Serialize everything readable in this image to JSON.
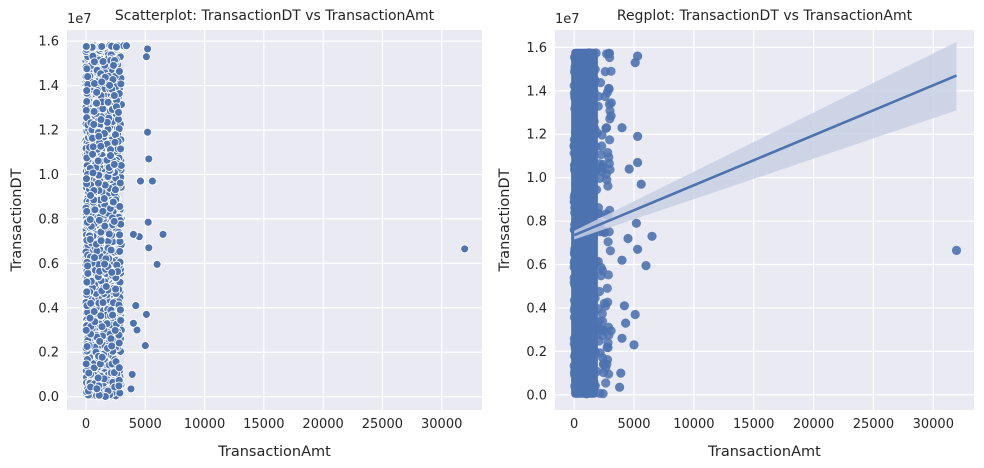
{
  "colors": {
    "axes_bg": "#eaeaf2",
    "grid": "#ffffff",
    "marker": "#4c72b0",
    "marker_edge": "#ffffff",
    "ci_band": "#c8d0e4",
    "text": "#262626"
  },
  "chart_data": [
    {
      "type": "scatter",
      "title": "Scatterplot: TransactionDT vs TransactionAmt",
      "xlabel": "TransactionAmt",
      "ylabel": "TransactionDT",
      "y_offset_label": "1e7",
      "xticks": [
        0,
        5000,
        10000,
        15000,
        20000,
        25000,
        30000
      ],
      "xtick_labels": [
        "0",
        "5000",
        "10000",
        "15000",
        "20000",
        "25000",
        "30000"
      ],
      "yticks": [
        0.0,
        0.2,
        0.4,
        0.6,
        0.8,
        1.0,
        1.2,
        1.4,
        1.6
      ],
      "ytick_labels": [
        "0.0",
        "0.2",
        "0.4",
        "0.6",
        "0.8",
        "1.0",
        "1.2",
        "1.4",
        "1.6"
      ],
      "xlim": [
        -1600,
        33400
      ],
      "ylim": [
        -0.06,
        1.65
      ],
      "grid": true,
      "marker_edge": "white",
      "dense_region": {
        "x_range": [
          0,
          3000
        ],
        "y_range": [
          0.0,
          1.58
        ]
      },
      "points": [
        {
          "x": 31937,
          "y": 0.665
        },
        {
          "x": 6500,
          "y": 0.73
        },
        {
          "x": 6000,
          "y": 0.595
        },
        {
          "x": 5600,
          "y": 0.97
        },
        {
          "x": 5300,
          "y": 1.07
        },
        {
          "x": 5200,
          "y": 1.19
        },
        {
          "x": 5100,
          "y": 1.53
        },
        {
          "x": 5200,
          "y": 1.565
        },
        {
          "x": 5250,
          "y": 0.785
        },
        {
          "x": 5300,
          "y": 0.67
        },
        {
          "x": 5100,
          "y": 0.37
        },
        {
          "x": 5000,
          "y": 0.23
        },
        {
          "x": 4600,
          "y": 0.97
        },
        {
          "x": 4500,
          "y": 0.72
        },
        {
          "x": 4300,
          "y": 0.3
        },
        {
          "x": 4200,
          "y": 0.41
        },
        {
          "x": 4000,
          "y": 0.33
        },
        {
          "x": 4000,
          "y": 0.73
        },
        {
          "x": 3900,
          "y": 0.1
        },
        {
          "x": 3800,
          "y": 0.035
        }
      ]
    },
    {
      "type": "scatter",
      "title": "Regplot: TransactionDT vs TransactionAmt",
      "xlabel": "TransactionAmt",
      "ylabel": "TransactionDT",
      "y_offset_label": "1e7",
      "xticks": [
        0,
        5000,
        10000,
        15000,
        20000,
        25000,
        30000
      ],
      "xtick_labels": [
        "0",
        "5000",
        "10000",
        "15000",
        "20000",
        "25000",
        "30000"
      ],
      "yticks": [
        0.0,
        0.2,
        0.4,
        0.6,
        0.8,
        1.0,
        1.2,
        1.4,
        1.6
      ],
      "ytick_labels": [
        "0.0",
        "0.2",
        "0.4",
        "0.6",
        "0.8",
        "1.0",
        "1.2",
        "1.4",
        "1.6"
      ],
      "xlim": [
        -1600,
        33400
      ],
      "ylim": [
        -0.07,
        1.68
      ],
      "grid": true,
      "dense_region": {
        "x_range": [
          0,
          3100
        ],
        "y_range": [
          0.0,
          1.58
        ]
      },
      "regression": {
        "x": [
          0,
          31937
        ],
        "y": [
          0.735,
          1.47
        ],
        "ci_upper": [
          0.755,
          1.625
        ],
        "ci_lower": [
          0.715,
          1.31
        ]
      },
      "points": [
        {
          "x": 31937,
          "y": 0.665
        },
        {
          "x": 6500,
          "y": 0.73
        },
        {
          "x": 6000,
          "y": 0.595
        },
        {
          "x": 5600,
          "y": 0.97
        },
        {
          "x": 5300,
          "y": 1.07
        },
        {
          "x": 5300,
          "y": 1.19
        },
        {
          "x": 5100,
          "y": 1.53
        },
        {
          "x": 5300,
          "y": 1.56
        },
        {
          "x": 5200,
          "y": 0.79
        },
        {
          "x": 5300,
          "y": 0.67
        },
        {
          "x": 5100,
          "y": 0.37
        },
        {
          "x": 5000,
          "y": 0.23
        },
        {
          "x": 4600,
          "y": 1.04
        },
        {
          "x": 4500,
          "y": 0.72
        },
        {
          "x": 4300,
          "y": 0.33
        },
        {
          "x": 4200,
          "y": 0.41
        },
        {
          "x": 4000,
          "y": 0.26
        },
        {
          "x": 4000,
          "y": 0.62
        },
        {
          "x": 4000,
          "y": 1.23
        },
        {
          "x": 3900,
          "y": 0.1
        },
        {
          "x": 3800,
          "y": 0.035
        }
      ]
    }
  ]
}
